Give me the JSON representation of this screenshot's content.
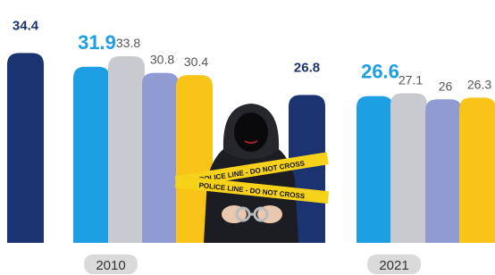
{
  "chart_data": {
    "type": "bar",
    "categories": [
      null,
      "2010",
      "2021"
    ],
    "series": [
      {
        "color": "#1d9fe3",
        "values": [
          null,
          31.9,
          26.6
        ]
      },
      {
        "color": "#c9cacf",
        "values": [
          null,
          33.8,
          27.1
        ]
      },
      {
        "color": "#8f9bd2",
        "values": [
          null,
          30.8,
          26.0
        ]
      },
      {
        "color": "#f8c417",
        "values": [
          null,
          30.4,
          26.3
        ]
      },
      {
        "color": "#1b3370",
        "values": [
          34.4,
          26.8,
          null
        ]
      }
    ],
    "ylim": [
      0,
      44
    ],
    "annotation": "POLICE LINE - DO NOT CROSS"
  }
}
